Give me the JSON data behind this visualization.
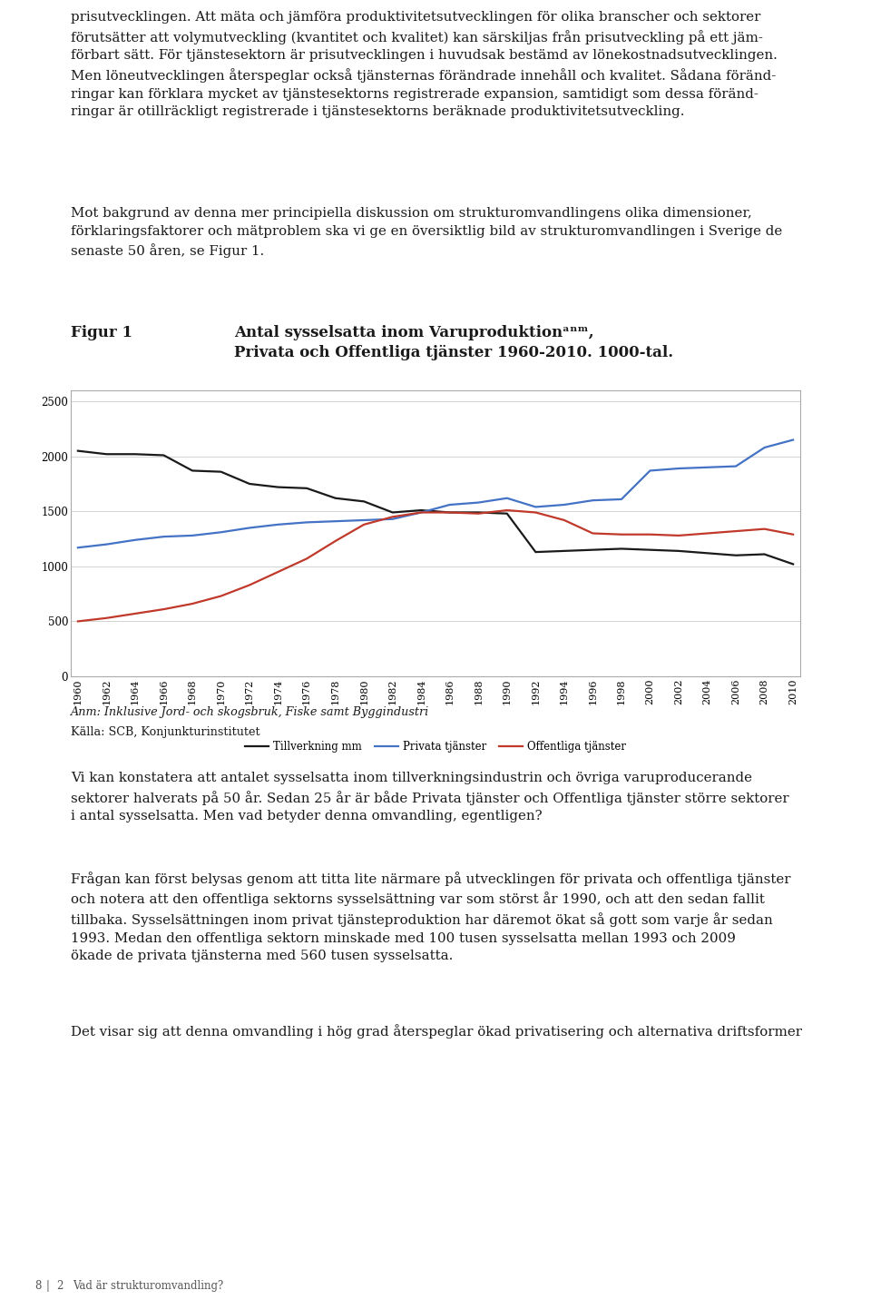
{
  "page_bg": "#ffffff",
  "top_para": "prisutvecklingen. Att mäta och jämföra produktivitetsutvecklingen för olika branscher och sektorer\nförutsätter att volymutveckling (kvantitet och kvalitet) kan särskiljas från prisutveckling på ett jäm-\nförbart sätt. För tjänstesektorn är prisutvecklingen i huvudsak bestämd av lönekostnadsutvecklingen.\nMen löneutvecklingen återspeglar också tjänsternas förändrade innehåll och kvalitet. Sådana föränd-\nringar kan förklara mycket av tjänstesektorns registrerade expansion, samtidigt som dessa föränd-\nringar är otillräckligt registrerade i tjänstesektorns beräknade produktivitetsutveckling.",
  "mid_para": "Mot bakgrund av denna mer principiella diskussion om strukturomvandlingens olika dimensioner,\nförklaringsfaktorer och mätproblem ska vi ge en översiktlig bild av strukturomvandlingen i Sverige de\nsenaste 50 åren, se Figur 1.",
  "figure_label": "Figur 1",
  "figure_title": "Antal sysselsatta inom Varuproduktionᵃⁿᵐ,\nPrivata och Offentliga tjänster 1960-2010. 1000-tal.",
  "years": [
    1960,
    1962,
    1964,
    1966,
    1968,
    1970,
    1972,
    1974,
    1976,
    1978,
    1980,
    1982,
    1984,
    1986,
    1988,
    1990,
    1992,
    1994,
    1996,
    1998,
    2000,
    2002,
    2004,
    2006,
    2008,
    2010
  ],
  "tillverkning": [
    2050,
    2020,
    2020,
    2010,
    1870,
    1860,
    1750,
    1720,
    1710,
    1620,
    1590,
    1490,
    1510,
    1490,
    1490,
    1480,
    1130,
    1140,
    1150,
    1160,
    1150,
    1140,
    1120,
    1100,
    1110,
    1020
  ],
  "privata": [
    1170,
    1200,
    1240,
    1270,
    1280,
    1310,
    1350,
    1380,
    1400,
    1410,
    1420,
    1430,
    1490,
    1560,
    1580,
    1620,
    1540,
    1560,
    1600,
    1610,
    1870,
    1890,
    1900,
    1910,
    2080,
    2150
  ],
  "offentliga": [
    500,
    530,
    570,
    610,
    660,
    730,
    830,
    950,
    1070,
    1230,
    1380,
    1450,
    1490,
    1490,
    1480,
    1510,
    1490,
    1420,
    1300,
    1290,
    1290,
    1280,
    1300,
    1320,
    1340,
    1290
  ],
  "ytick_labels": [
    "0",
    "500",
    "1000",
    "1500",
    "2000",
    "2500"
  ],
  "ytick_values": [
    0,
    500,
    1000,
    1500,
    2000,
    2500
  ],
  "ylim": [
    0,
    2600
  ],
  "legend_tillverkning": "Tillverkning mm",
  "legend_privata": "Privata tjänster",
  "legend_offentliga": "Offentliga tjänster",
  "color_tillverkning": "#1a1a1a",
  "color_privata": "#4472c4",
  "color_offentliga": "#c0392b",
  "anm_text": "Anm: Inklusive Jord- och skogsbruk, Fiske samt Byggindustri",
  "kalla_text": "Källa: SCB, Konjunkturinstitutet",
  "bt1": "Vi kan konstatera att antalet sysselsatta inom tillverkningsindustrin och övriga varuproducerande\nsektorer halverats på 50 år. Sedan 25 år är både Privata tjänster och Offentliga tjänster större sektorer\ni antal sysselsatta. Men vad betyder denna omvandling, egentligen?",
  "bt2": "Frågan kan först belysas genom att titta lite närmare på utvecklingen för privata och offentliga tjänster\noch notera att den offentliga sektorns sysselsättning var som störst år 1990, och att den sedan fallit\ntillbaka. Sysselsättningen inom privat tjänsteproduktion har däremot ökat så gott som varje år sedan\n1993. Medan den offentliga sektorn minskade med 100 tusen sysselsatta mellan 1993 och 2009\nökade de privata tjänsterna med 560 tusen sysselsatta.",
  "bt3": "Det visar sig att denna omvandling i hög grad återspeglar ökad privatisering och alternativa driftsformer",
  "footer_num": "8",
  "footer_ch": "2",
  "footer_title": "Vad är strukturomvandling?",
  "body_fs": 10.8,
  "small_fs": 9.2,
  "label_fs": 12.0,
  "chart_border_color": "#aaaaaa"
}
